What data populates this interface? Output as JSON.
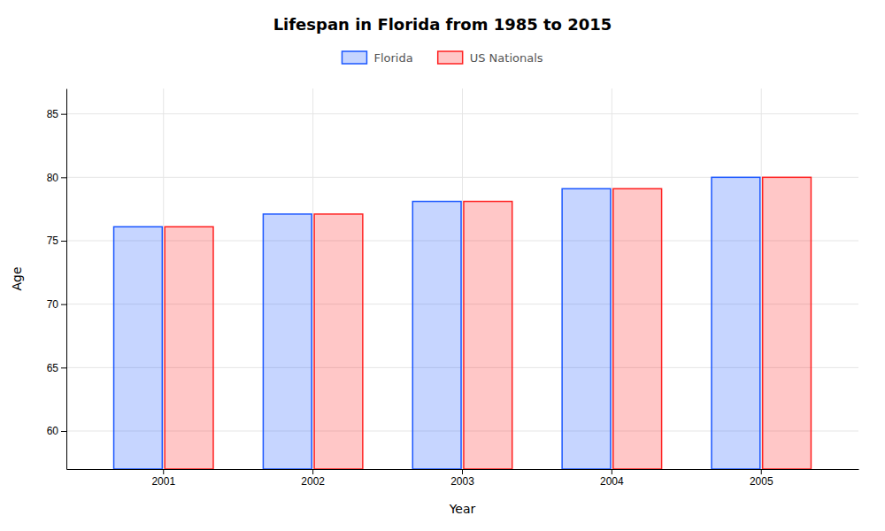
{
  "chart_data": {
    "type": "bar",
    "title": "Lifespan in Florida from 1985 to 2015",
    "x_label": "Year",
    "y_label": "Age",
    "categories": [
      "2001",
      "2002",
      "2003",
      "2004",
      "2005"
    ],
    "series": [
      {
        "name": "Florida",
        "color": "#1a56ff",
        "values": [
          76.1,
          77.1,
          78.1,
          79.1,
          80.0
        ]
      },
      {
        "name": "US Nationals",
        "color": "#ff2020",
        "values": [
          76.1,
          77.1,
          78.1,
          79.1,
          80.0
        ]
      }
    ],
    "ylim": [
      57,
      87
    ],
    "yticks": [
      60,
      65,
      70,
      75,
      80,
      85
    ],
    "grid": true,
    "legend": "top"
  }
}
